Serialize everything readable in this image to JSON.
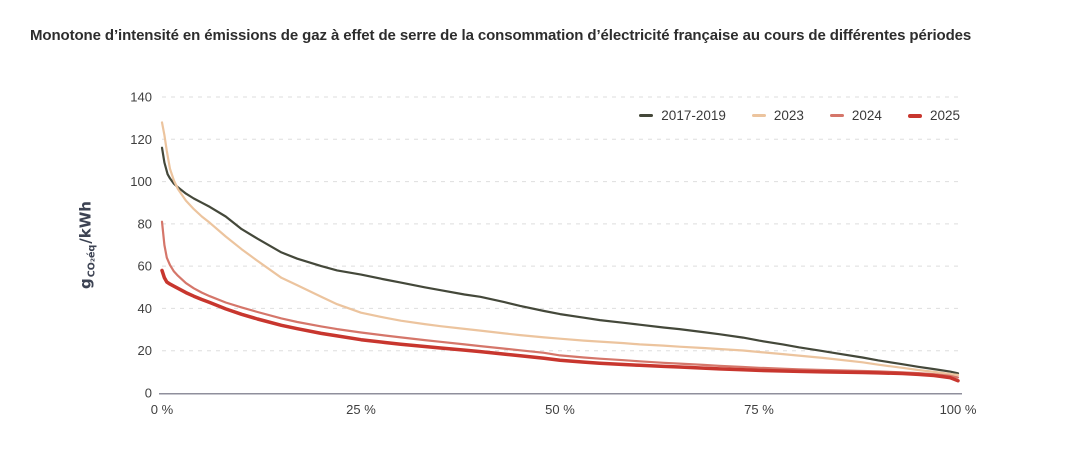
{
  "colors": {
    "background": "#ffffff",
    "title_text": "#2d2d2d",
    "tick_text": "#3f3f3f",
    "ylabel_text": "#3d4353",
    "grid": "#dedede",
    "axis": "#8f8f9c"
  },
  "chart_data": {
    "type": "line",
    "title": "Monotone d’intensité en émissions de gaz à effet de serre de la consommation d’électricité française au cours de différentes périodes",
    "xlabel": "",
    "ylabel": "g CO₂éq/kWh",
    "ylabel_parts": {
      "main": "g",
      "sub": "CO₂éq",
      "rest": "/kWh"
    },
    "xlim": [
      0,
      100
    ],
    "ylim": [
      0,
      140
    ],
    "y_ticks": [
      0,
      20,
      40,
      60,
      80,
      100,
      120,
      140
    ],
    "x_ticks": [
      {
        "value": 0,
        "label": "0 %"
      },
      {
        "value": 25,
        "label": "25 %"
      },
      {
        "value": 50,
        "label": "50 %"
      },
      {
        "value": 75,
        "label": "75 %"
      },
      {
        "value": 100,
        "label": "100 %"
      }
    ],
    "grid": "horizontal-dashed",
    "legend_position": "top-right",
    "series": [
      {
        "name": "2017-2019",
        "color": "#44483a",
        "line_width": 2.2,
        "points": [
          [
            0,
            116
          ],
          [
            0.3,
            109
          ],
          [
            0.7,
            103.5
          ],
          [
            1,
            101.5
          ],
          [
            1.5,
            99
          ],
          [
            2,
            97.3
          ],
          [
            3,
            94.3
          ],
          [
            4,
            92
          ],
          [
            5,
            90
          ],
          [
            6,
            88
          ],
          [
            8,
            83.5
          ],
          [
            10,
            77.5
          ],
          [
            12,
            73
          ],
          [
            15,
            66.5
          ],
          [
            17,
            63.5
          ],
          [
            20,
            60
          ],
          [
            22,
            58
          ],
          [
            25,
            56
          ],
          [
            28,
            53.7
          ],
          [
            30,
            52.2
          ],
          [
            33,
            50
          ],
          [
            35,
            48.6
          ],
          [
            38,
            46.6
          ],
          [
            40,
            45.5
          ],
          [
            43,
            43
          ],
          [
            45,
            41.2
          ],
          [
            48,
            38.8
          ],
          [
            50,
            37.3
          ],
          [
            53,
            35.6
          ],
          [
            55,
            34.5
          ],
          [
            58,
            33.2
          ],
          [
            60,
            32.3
          ],
          [
            63,
            31
          ],
          [
            65,
            30.2
          ],
          [
            68,
            28.8
          ],
          [
            70,
            27.8
          ],
          [
            73,
            26.2
          ],
          [
            75,
            24.8
          ],
          [
            78,
            23
          ],
          [
            80,
            21.6
          ],
          [
            83,
            19.8
          ],
          [
            85,
            18.6
          ],
          [
            88,
            16.8
          ],
          [
            90,
            15.4
          ],
          [
            93,
            13.6
          ],
          [
            95,
            12.4
          ],
          [
            97,
            11.3
          ],
          [
            99,
            10.1
          ],
          [
            100,
            9.3
          ]
        ]
      },
      {
        "name": "2023",
        "color": "#ecc49e",
        "line_width": 2.2,
        "points": [
          [
            0,
            128
          ],
          [
            0.3,
            122
          ],
          [
            0.6,
            114.5
          ],
          [
            1,
            106
          ],
          [
            1.5,
            100.5
          ],
          [
            2,
            96.5
          ],
          [
            3,
            91
          ],
          [
            4,
            87
          ],
          [
            5,
            83.5
          ],
          [
            6,
            80.5
          ],
          [
            8,
            74
          ],
          [
            10,
            68
          ],
          [
            12,
            62.5
          ],
          [
            15,
            54.5
          ],
          [
            17,
            51
          ],
          [
            20,
            45.5
          ],
          [
            22,
            42
          ],
          [
            25,
            38
          ],
          [
            28,
            35.6
          ],
          [
            30,
            34.2
          ],
          [
            33,
            32.6
          ],
          [
            35,
            31.6
          ],
          [
            38,
            30.3
          ],
          [
            40,
            29.5
          ],
          [
            43,
            28.2
          ],
          [
            45,
            27.4
          ],
          [
            48,
            26.3
          ],
          [
            50,
            25.7
          ],
          [
            53,
            24.8
          ],
          [
            55,
            24.3
          ],
          [
            58,
            23.6
          ],
          [
            60,
            23
          ],
          [
            63,
            22.4
          ],
          [
            65,
            21.9
          ],
          [
            68,
            21.3
          ],
          [
            70,
            20.8
          ],
          [
            73,
            20.1
          ],
          [
            75,
            19.4
          ],
          [
            78,
            18.4
          ],
          [
            80,
            17.7
          ],
          [
            83,
            16.6
          ],
          [
            85,
            15.8
          ],
          [
            88,
            14.5
          ],
          [
            90,
            13.4
          ],
          [
            93,
            11.9
          ],
          [
            95,
            10.9
          ],
          [
            97,
            10
          ],
          [
            99,
            9
          ],
          [
            100,
            8.5
          ]
        ]
      },
      {
        "name": "2024",
        "color": "#d5766a",
        "line_width": 2.2,
        "points": [
          [
            0,
            81
          ],
          [
            0.3,
            70
          ],
          [
            0.6,
            64
          ],
          [
            1,
            60.5
          ],
          [
            1.5,
            57.5
          ],
          [
            2,
            55.5
          ],
          [
            3,
            52
          ],
          [
            4,
            49.5
          ],
          [
            5,
            47.5
          ],
          [
            6,
            45.8
          ],
          [
            8,
            42.8
          ],
          [
            10,
            40.5
          ],
          [
            12,
            38.3
          ],
          [
            15,
            35.3
          ],
          [
            17,
            33.6
          ],
          [
            20,
            31.5
          ],
          [
            22,
            30.2
          ],
          [
            25,
            28.6
          ],
          [
            28,
            27.2
          ],
          [
            30,
            26.3
          ],
          [
            33,
            25
          ],
          [
            35,
            24.2
          ],
          [
            38,
            23
          ],
          [
            40,
            22.2
          ],
          [
            43,
            21
          ],
          [
            45,
            20.2
          ],
          [
            48,
            19
          ],
          [
            50,
            17.8
          ],
          [
            53,
            16.8
          ],
          [
            55,
            16.2
          ],
          [
            58,
            15.5
          ],
          [
            60,
            15
          ],
          [
            63,
            14.3
          ],
          [
            65,
            13.9
          ],
          [
            68,
            13.3
          ],
          [
            70,
            12.8
          ],
          [
            73,
            12.3
          ],
          [
            75,
            11.9
          ],
          [
            78,
            11.5
          ],
          [
            80,
            11.2
          ],
          [
            83,
            10.9
          ],
          [
            85,
            10.7
          ],
          [
            88,
            10.4
          ],
          [
            90,
            10.2
          ],
          [
            93,
            9.8
          ],
          [
            95,
            9.4
          ],
          [
            97,
            8.9
          ],
          [
            99,
            8.1
          ],
          [
            100,
            7.4
          ]
        ]
      },
      {
        "name": "2025",
        "color": "#c8362e",
        "line_width": 3.5,
        "points": [
          [
            0,
            58
          ],
          [
            0.3,
            54.5
          ],
          [
            0.6,
            52.5
          ],
          [
            1,
            51.5
          ],
          [
            1.5,
            50.5
          ],
          [
            2,
            49.5
          ],
          [
            3,
            47.5
          ],
          [
            4,
            45.8
          ],
          [
            5,
            44.2
          ],
          [
            6,
            42.8
          ],
          [
            8,
            39.8
          ],
          [
            10,
            37.2
          ],
          [
            12,
            35
          ],
          [
            15,
            32
          ],
          [
            17,
            30.4
          ],
          [
            20,
            28.2
          ],
          [
            22,
            27
          ],
          [
            25,
            25.2
          ],
          [
            28,
            23.9
          ],
          [
            30,
            23.1
          ],
          [
            33,
            22
          ],
          [
            35,
            21.3
          ],
          [
            38,
            20.3
          ],
          [
            40,
            19.6
          ],
          [
            43,
            18.4
          ],
          [
            45,
            17.6
          ],
          [
            48,
            16.4
          ],
          [
            50,
            15.5
          ],
          [
            53,
            14.6
          ],
          [
            55,
            14.1
          ],
          [
            58,
            13.5
          ],
          [
            60,
            13.1
          ],
          [
            63,
            12.6
          ],
          [
            65,
            12.3
          ],
          [
            68,
            11.8
          ],
          [
            70,
            11.4
          ],
          [
            73,
            11
          ],
          [
            75,
            10.7
          ],
          [
            78,
            10.4
          ],
          [
            80,
            10.2
          ],
          [
            83,
            10
          ],
          [
            85,
            9.9
          ],
          [
            88,
            9.7
          ],
          [
            90,
            9.5
          ],
          [
            93,
            9.2
          ],
          [
            95,
            8.8
          ],
          [
            97,
            8.3
          ],
          [
            99,
            7.3
          ],
          [
            100,
            5.8
          ]
        ]
      }
    ]
  }
}
